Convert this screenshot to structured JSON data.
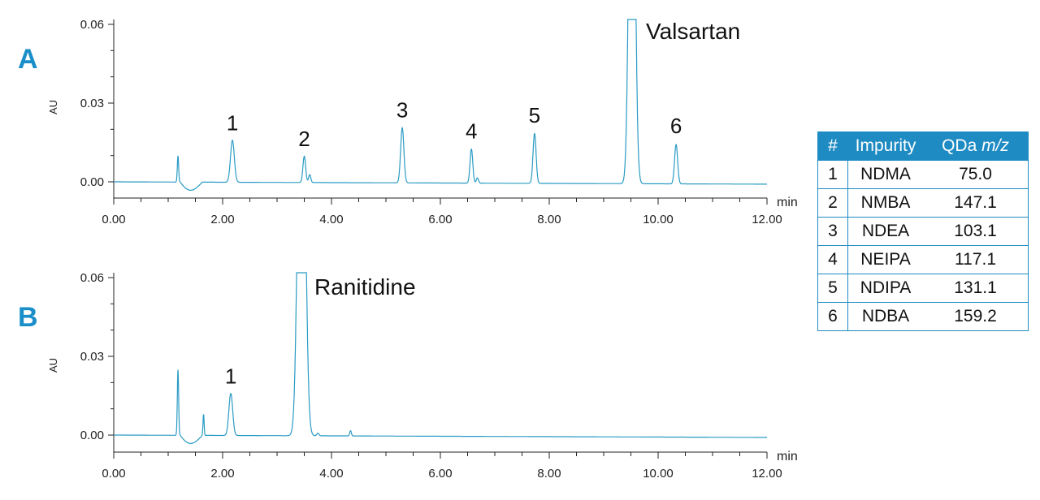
{
  "chart_data": [
    {
      "type": "line",
      "panel_label": "A",
      "ylabel": "AU",
      "xunit": "min",
      "xlim": [
        0,
        12
      ],
      "ylim": [
        -0.006,
        0.062
      ],
      "xticks": [
        "0.00",
        "2.00",
        "4.00",
        "6.00",
        "8.00",
        "10.00",
        "12.00"
      ],
      "yticks": [
        "0.06",
        "0.03",
        "0.00"
      ],
      "ytick_values": [
        0.06,
        0.03,
        0.0
      ],
      "compound": "Valsartan",
      "series": [
        {
          "peaks": [
            {
              "x": 1.18,
              "h": 0.01,
              "w": 0.012
            },
            {
              "x": 2.18,
              "h": 0.016,
              "w": 0.035
            },
            {
              "x": 3.5,
              "h": 0.01,
              "w": 0.025
            },
            {
              "x": 3.6,
              "h": 0.003,
              "w": 0.02
            },
            {
              "x": 5.3,
              "h": 0.021,
              "w": 0.03
            },
            {
              "x": 6.57,
              "h": 0.013,
              "w": 0.025
            },
            {
              "x": 6.68,
              "h": 0.002,
              "w": 0.02
            },
            {
              "x": 7.73,
              "h": 0.019,
              "w": 0.028
            },
            {
              "x": 9.52,
              "h": 0.2,
              "w": 0.05
            },
            {
              "x": 10.33,
              "h": 0.015,
              "w": 0.028
            }
          ]
        }
      ],
      "peak_labels": [
        {
          "text": "1",
          "x": 2.18,
          "y": 0.0165
        },
        {
          "text": "2",
          "x": 3.5,
          "y": 0.0105
        },
        {
          "text": "3",
          "x": 5.3,
          "y": 0.0215
        },
        {
          "text": "4",
          "x": 6.57,
          "y": 0.0135
        },
        {
          "text": "5",
          "x": 7.73,
          "y": 0.0195
        },
        {
          "text": "6",
          "x": 10.33,
          "y": 0.0155
        }
      ]
    },
    {
      "type": "line",
      "panel_label": "B",
      "ylabel": "AU",
      "xunit": "min",
      "xlim": [
        0,
        12
      ],
      "ylim": [
        -0.006,
        0.062
      ],
      "xticks": [
        "0.00",
        "2.00",
        "4.00",
        "6.00",
        "8.00",
        "10.00",
        "12.00"
      ],
      "yticks": [
        "0.06",
        "0.03",
        "0.00"
      ],
      "ytick_values": [
        0.06,
        0.03,
        0.0
      ],
      "compound": "Ranitidine",
      "series": [
        {
          "peaks": [
            {
              "x": 1.18,
              "h": 0.025,
              "w": 0.012
            },
            {
              "x": 1.65,
              "h": 0.008,
              "w": 0.01
            },
            {
              "x": 2.15,
              "h": 0.016,
              "w": 0.035
            },
            {
              "x": 3.45,
              "h": 0.2,
              "w": 0.06
            },
            {
              "x": 3.75,
              "h": 0.001,
              "w": 0.02
            },
            {
              "x": 4.35,
              "h": 0.002,
              "w": 0.015
            }
          ]
        }
      ],
      "peak_labels": [
        {
          "text": "1",
          "x": 2.15,
          "y": 0.0165
        }
      ]
    }
  ],
  "table": {
    "headers": {
      "num": "#",
      "impurity": "Impurity",
      "mz_prefix": "QDa ",
      "mz_italic": "m/z"
    },
    "rows": [
      {
        "num": "1",
        "name": "NDMA",
        "mz": "75.0"
      },
      {
        "num": "2",
        "name": "NMBA",
        "mz": "147.1"
      },
      {
        "num": "3",
        "name": "NDEA",
        "mz": "103.1"
      },
      {
        "num": "4",
        "name": "NEIPA",
        "mz": "117.1"
      },
      {
        "num": "5",
        "name": "NDIPA",
        "mz": "131.1"
      },
      {
        "num": "6",
        "name": "NDBA",
        "mz": "159.2"
      }
    ]
  },
  "colors": {
    "trace": "#2a9bc4",
    "axis": "#222222",
    "accent": "#1a8ec8",
    "table_header": "#1e8bc3"
  }
}
